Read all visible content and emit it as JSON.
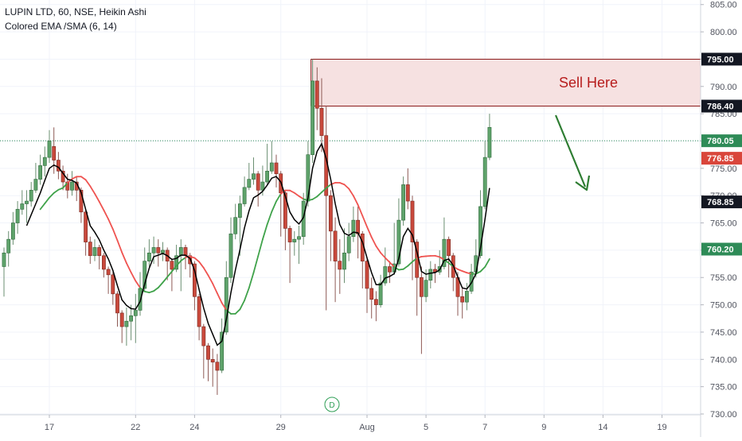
{
  "header": {
    "title": "LUPIN LTD, 60, NSE, Heikin Ashi",
    "indicator": "Colored EMA /SMA (6, 14)"
  },
  "colors": {
    "up": "#5fa36b",
    "up_border": "#2f6a3c",
    "down": "#c9493c",
    "down_border": "#7a2a22",
    "ema_fast": "#000000",
    "sma_up": "#3fa24a",
    "sma_down": "#ef5350",
    "zone_fill": "#f6e1e1",
    "zone_border": "#8b1a1a",
    "arrow": "#2e7d32",
    "annotation": "#b71c1c"
  },
  "annotations": {
    "sell_text": "Sell Here",
    "event_marker": "D"
  },
  "chart_data": {
    "type": "candlestick",
    "title": "LUPIN LTD, 60, NSE, Heikin Ashi",
    "y_range": [
      730,
      807
    ],
    "y_ticks": [
      730,
      735,
      740,
      745,
      750,
      755,
      760,
      765,
      770,
      775,
      780,
      785,
      790,
      795,
      800,
      805
    ],
    "y_tick_labels": [
      "730.00",
      "735.00",
      "740.00",
      "745.00",
      "750.00",
      "755.00",
      "760.00",
      "765.00",
      "770.00",
      "775.00",
      "780.00",
      "785.00",
      "790.00",
      "795.00",
      "800.00",
      "805.00"
    ],
    "x_ticks": [
      {
        "label": "17",
        "i": 10
      },
      {
        "label": "22",
        "i": 29
      },
      {
        "label": "24",
        "i": 42
      },
      {
        "label": "29",
        "i": 61
      },
      {
        "label": "Aug",
        "i": 80
      },
      {
        "label": "5",
        "i": 93
      },
      {
        "label": "7",
        "i": 106
      },
      {
        "label": "9",
        "i": 119
      },
      {
        "label": "14",
        "i": 132
      },
      {
        "label": "19",
        "i": 145
      }
    ],
    "price_labels": [
      {
        "value": "795.00",
        "price": 795.0,
        "style": "dark"
      },
      {
        "value": "786.40",
        "price": 786.4,
        "style": "dark"
      },
      {
        "value": "780.05",
        "price": 780.05,
        "style": "green"
      },
      {
        "value": "776.85",
        "price": 776.85,
        "style": "red"
      },
      {
        "value": "768.85",
        "price": 768.85,
        "style": "dark"
      },
      {
        "value": "760.20",
        "price": 760.2,
        "style": "green"
      }
    ],
    "current_price": 780.05,
    "sell_zone": {
      "low": 786.4,
      "high": 795.0,
      "start_i": 68
    },
    "candles": [
      [
        757.0,
        759.5,
        760.5,
        751.5
      ],
      [
        759.5,
        762.0,
        763.5,
        757.0
      ],
      [
        762.0,
        765.0,
        767.0,
        761.0
      ],
      [
        765.0,
        767.5,
        769.0,
        763.0
      ],
      [
        767.5,
        768.5,
        771.0,
        766.5
      ],
      [
        768.5,
        769.0,
        771.0,
        765.0
      ],
      [
        769.0,
        771.0,
        772.5,
        768.0
      ],
      [
        771.0,
        773.0,
        776.0,
        770.5
      ],
      [
        773.0,
        775.5,
        777.5,
        772.0
      ],
      [
        775.5,
        777.0,
        779.0,
        773.5
      ],
      [
        777.0,
        780.0,
        782.0,
        776.0
      ],
      [
        779.0,
        776.5,
        782.5,
        774.0
      ],
      [
        776.5,
        774.5,
        778.0,
        773.0
      ],
      [
        774.5,
        772.5,
        775.5,
        771.0
      ],
      [
        772.5,
        771.0,
        774.0,
        769.5
      ],
      [
        771.0,
        772.5,
        774.5,
        770.0
      ],
      [
        772.5,
        771.0,
        773.5,
        769.0
      ],
      [
        771.0,
        767.0,
        771.5,
        765.0
      ],
      [
        767.0,
        761.5,
        767.5,
        759.0
      ],
      [
        761.5,
        759.0,
        762.5,
        757.5
      ],
      [
        759.0,
        760.5,
        762.0,
        758.0
      ],
      [
        760.5,
        759.0,
        761.0,
        756.5
      ],
      [
        759.0,
        756.5,
        759.5,
        755.0
      ],
      [
        756.5,
        755.5,
        757.0,
        752.0
      ],
      [
        755.5,
        752.0,
        756.0,
        750.0
      ],
      [
        752.0,
        748.5,
        752.5,
        746.0
      ],
      [
        748.5,
        746.0,
        749.0,
        743.0
      ],
      [
        746.0,
        747.0,
        749.5,
        742.5
      ],
      [
        747.0,
        748.0,
        750.0,
        743.5
      ],
      [
        748.0,
        749.0,
        752.0,
        743.0
      ],
      [
        749.0,
        753.0,
        756.0,
        748.0
      ],
      [
        753.0,
        758.0,
        760.5,
        752.5
      ],
      [
        758.0,
        759.5,
        762.0,
        757.0
      ],
      [
        759.5,
        760.5,
        762.5,
        757.5
      ],
      [
        760.5,
        759.5,
        762.0,
        757.0
      ],
      [
        759.5,
        760.0,
        761.5,
        758.0
      ],
      [
        760.0,
        758.0,
        760.5,
        754.5
      ],
      [
        758.0,
        756.5,
        758.5,
        752.5
      ],
      [
        756.5,
        759.0,
        761.0,
        756.0
      ],
      [
        759.0,
        760.5,
        762.0,
        752.5
      ],
      [
        760.5,
        759.0,
        761.0,
        756.5
      ],
      [
        759.0,
        757.5,
        759.5,
        755.0
      ],
      [
        757.5,
        751.5,
        758.0,
        749.0
      ],
      [
        751.5,
        746.0,
        752.0,
        743.5
      ],
      [
        746.0,
        742.5,
        746.5,
        736.5
      ],
      [
        742.5,
        740.0,
        743.0,
        736.0
      ],
      [
        740.0,
        739.5,
        742.0,
        735.0
      ],
      [
        739.5,
        738.0,
        741.0,
        733.5
      ],
      [
        738.0,
        745.0,
        747.5,
        737.5
      ],
      [
        745.0,
        755.0,
        758.0,
        744.5
      ],
      [
        755.0,
        763.0,
        766.0,
        754.0
      ],
      [
        763.0,
        766.0,
        768.5,
        762.0
      ],
      [
        766.0,
        768.5,
        770.0,
        759.0
      ],
      [
        768.5,
        771.5,
        773.5,
        768.0
      ],
      [
        771.5,
        773.0,
        776.0,
        771.0
      ],
      [
        773.0,
        774.0,
        777.0,
        772.0
      ],
      [
        774.0,
        771.0,
        774.5,
        768.0
      ],
      [
        771.0,
        772.5,
        775.5,
        770.0
      ],
      [
        772.5,
        774.5,
        779.5,
        772.0
      ],
      [
        774.5,
        776.0,
        780.0,
        774.0
      ],
      [
        776.0,
        774.0,
        777.5,
        771.5
      ],
      [
        774.0,
        770.5,
        774.5,
        762.5
      ],
      [
        770.5,
        764.0,
        771.0,
        760.0
      ],
      [
        764.0,
        761.5,
        764.5,
        754.0
      ],
      [
        761.5,
        762.0,
        763.5,
        759.0
      ],
      [
        762.0,
        762.5,
        764.5,
        757.5
      ],
      [
        762.5,
        769.0,
        770.5,
        761.0
      ],
      [
        769.0,
        777.5,
        780.0,
        768.0
      ],
      [
        777.5,
        791.0,
        795.0,
        776.0
      ],
      [
        791.0,
        786.0,
        793.5,
        782.0
      ],
      [
        786.0,
        781.0,
        791.5,
        778.0
      ],
      [
        781.0,
        770.0,
        786.5,
        749.0
      ],
      [
        770.0,
        763.5,
        771.0,
        758.0
      ],
      [
        763.5,
        758.0,
        766.0,
        750.5
      ],
      [
        758.0,
        756.5,
        762.0,
        752.0
      ],
      [
        756.5,
        759.5,
        764.0,
        754.0
      ],
      [
        759.5,
        762.5,
        765.0,
        758.0
      ],
      [
        762.5,
        765.5,
        768.0,
        761.5
      ],
      [
        765.5,
        763.0,
        768.0,
        758.5
      ],
      [
        763.0,
        758.0,
        763.5,
        753.0
      ],
      [
        758.0,
        753.0,
        758.5,
        748.5
      ],
      [
        753.0,
        751.0,
        755.0,
        747.5
      ],
      [
        751.0,
        750.0,
        752.5,
        747.0
      ],
      [
        750.0,
        754.0,
        755.5,
        749.5
      ],
      [
        754.0,
        757.0,
        760.5,
        753.5
      ],
      [
        757.0,
        756.0,
        758.0,
        754.0
      ],
      [
        756.0,
        757.5,
        765.0,
        755.5
      ],
      [
        757.5,
        765.5,
        769.5,
        757.0
      ],
      [
        765.5,
        772.0,
        773.5,
        764.5
      ],
      [
        772.0,
        769.0,
        775.0,
        767.5
      ],
      [
        769.0,
        761.5,
        770.0,
        754.5
      ],
      [
        761.5,
        755.0,
        762.0,
        748.0
      ],
      [
        755.0,
        751.5,
        757.0,
        741.0
      ],
      [
        751.5,
        754.5,
        756.5,
        750.5
      ],
      [
        754.5,
        756.5,
        758.0,
        753.0
      ],
      [
        756.5,
        756.0,
        757.5,
        754.0
      ],
      [
        756.0,
        757.0,
        760.0,
        755.5
      ],
      [
        757.0,
        762.0,
        766.0,
        756.5
      ],
      [
        762.0,
        759.0,
        762.5,
        755.0
      ],
      [
        759.0,
        755.0,
        759.5,
        752.5
      ],
      [
        755.0,
        751.5,
        756.0,
        748.0
      ],
      [
        751.5,
        750.5,
        753.0,
        747.5
      ],
      [
        750.5,
        752.5,
        754.0,
        749.0
      ],
      [
        752.5,
        756.0,
        757.5,
        752.0
      ],
      [
        756.0,
        759.0,
        762.0,
        755.0
      ],
      [
        759.0,
        768.0,
        771.0,
        758.5
      ],
      [
        768.0,
        777.0,
        780.0,
        767.5
      ],
      [
        777.0,
        782.5,
        785.0,
        776.5
      ]
    ],
    "ema_fast": [
      null,
      null,
      null,
      null,
      null,
      764.5,
      766.5,
      768.5,
      770.5,
      772.8,
      775.0,
      775.6,
      775.2,
      774.1,
      773.0,
      772.8,
      772.3,
      770.6,
      767.5,
      764.5,
      763.3,
      761.9,
      760.0,
      758.4,
      756.3,
      753.5,
      750.9,
      749.9,
      749.3,
      749.2,
      750.6,
      753.8,
      756.7,
      758.8,
      759.1,
      759.4,
      759.0,
      758.3,
      758.5,
      759.1,
      759.1,
      758.5,
      756.3,
      752.8,
      749.4,
      746.6,
      744.6,
      742.6,
      743.3,
      747.3,
      752.2,
      756.4,
      760.1,
      764.1,
      767.2,
      769.6,
      770.1,
      770.8,
      771.9,
      773.2,
      773.5,
      772.5,
      769.9,
      767.0,
      765.6,
      764.8,
      766.0,
      769.6,
      775.0,
      778.1,
      779.5,
      776.8,
      773.0,
      768.5,
      764.7,
      763.1,
      762.7,
      763.3,
      763.2,
      761.5,
      758.6,
      755.9,
      753.7,
      753.7,
      754.9,
      755.2,
      755.7,
      758.5,
      762.5,
      764.0,
      762.8,
      759.7,
      756.1,
      755.6,
      755.8,
      755.9,
      756.4,
      758.1,
      758.4,
      757.2,
      755.1,
      753.1,
      752.9,
      754.0,
      755.7,
      760.4,
      765.7,
      771.4
    ]
  }
}
